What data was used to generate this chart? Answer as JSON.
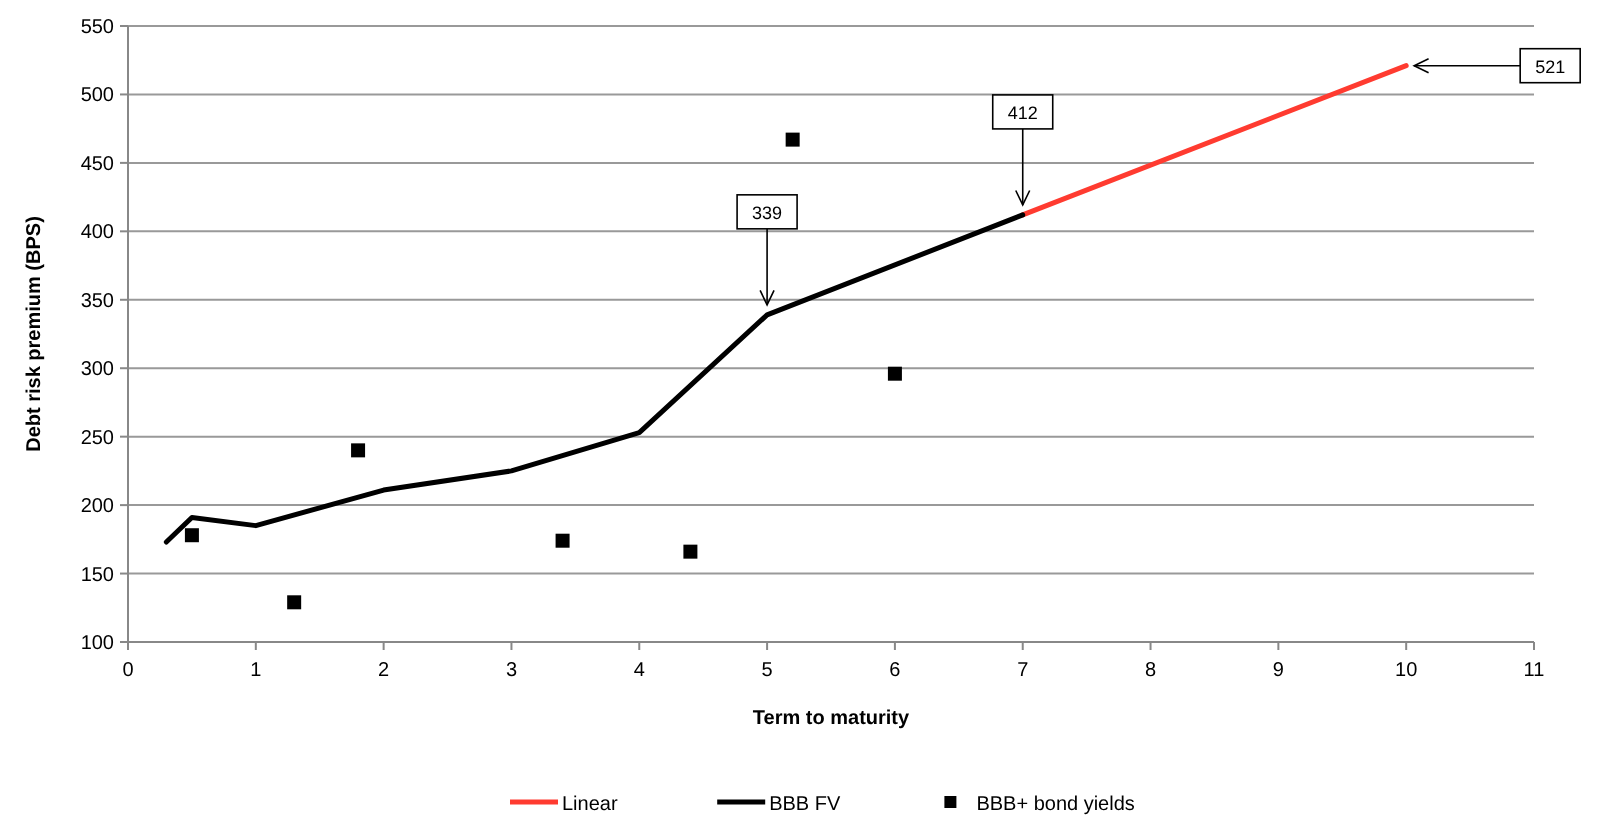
{
  "chart_data": {
    "type": "line",
    "xlabel": "Term to maturity",
    "ylabel": "Debt risk premium (BPS)",
    "xlim": [
      0,
      11
    ],
    "xticks": [
      0,
      1,
      2,
      3,
      4,
      5,
      6,
      7,
      8,
      9,
      10,
      11
    ],
    "ylim": [
      100,
      550
    ],
    "yticks": [
      100,
      150,
      200,
      250,
      300,
      350,
      400,
      450,
      500,
      550
    ],
    "grid": "y",
    "legend": "bottom",
    "line_style": "solid",
    "series": [
      {
        "name": "Linear",
        "color": "#ff3b30",
        "x": [
          7,
          10
        ],
        "values": [
          412,
          521
        ]
      },
      {
        "name": "BBB FV",
        "color": "#000000",
        "x": [
          0.3,
          0.5,
          1,
          2,
          3,
          4,
          5,
          7
        ],
        "values": [
          173,
          191,
          185,
          211,
          225,
          253,
          339,
          412
        ]
      },
      {
        "name": "BBB+ bond yields",
        "type": "scatter",
        "color": "#000000",
        "marker": "square",
        "x": [
          0.5,
          1.3,
          1.8,
          3.4,
          4.4,
          5.2,
          6
        ],
        "values": [
          178,
          129,
          240,
          174,
          166,
          467,
          296
        ]
      }
    ],
    "annotations": [
      {
        "text": "339",
        "x": 5,
        "y": 339
      },
      {
        "text": "412",
        "x": 7,
        "y": 412
      },
      {
        "text": "521",
        "x": 10,
        "y": 521
      }
    ]
  }
}
